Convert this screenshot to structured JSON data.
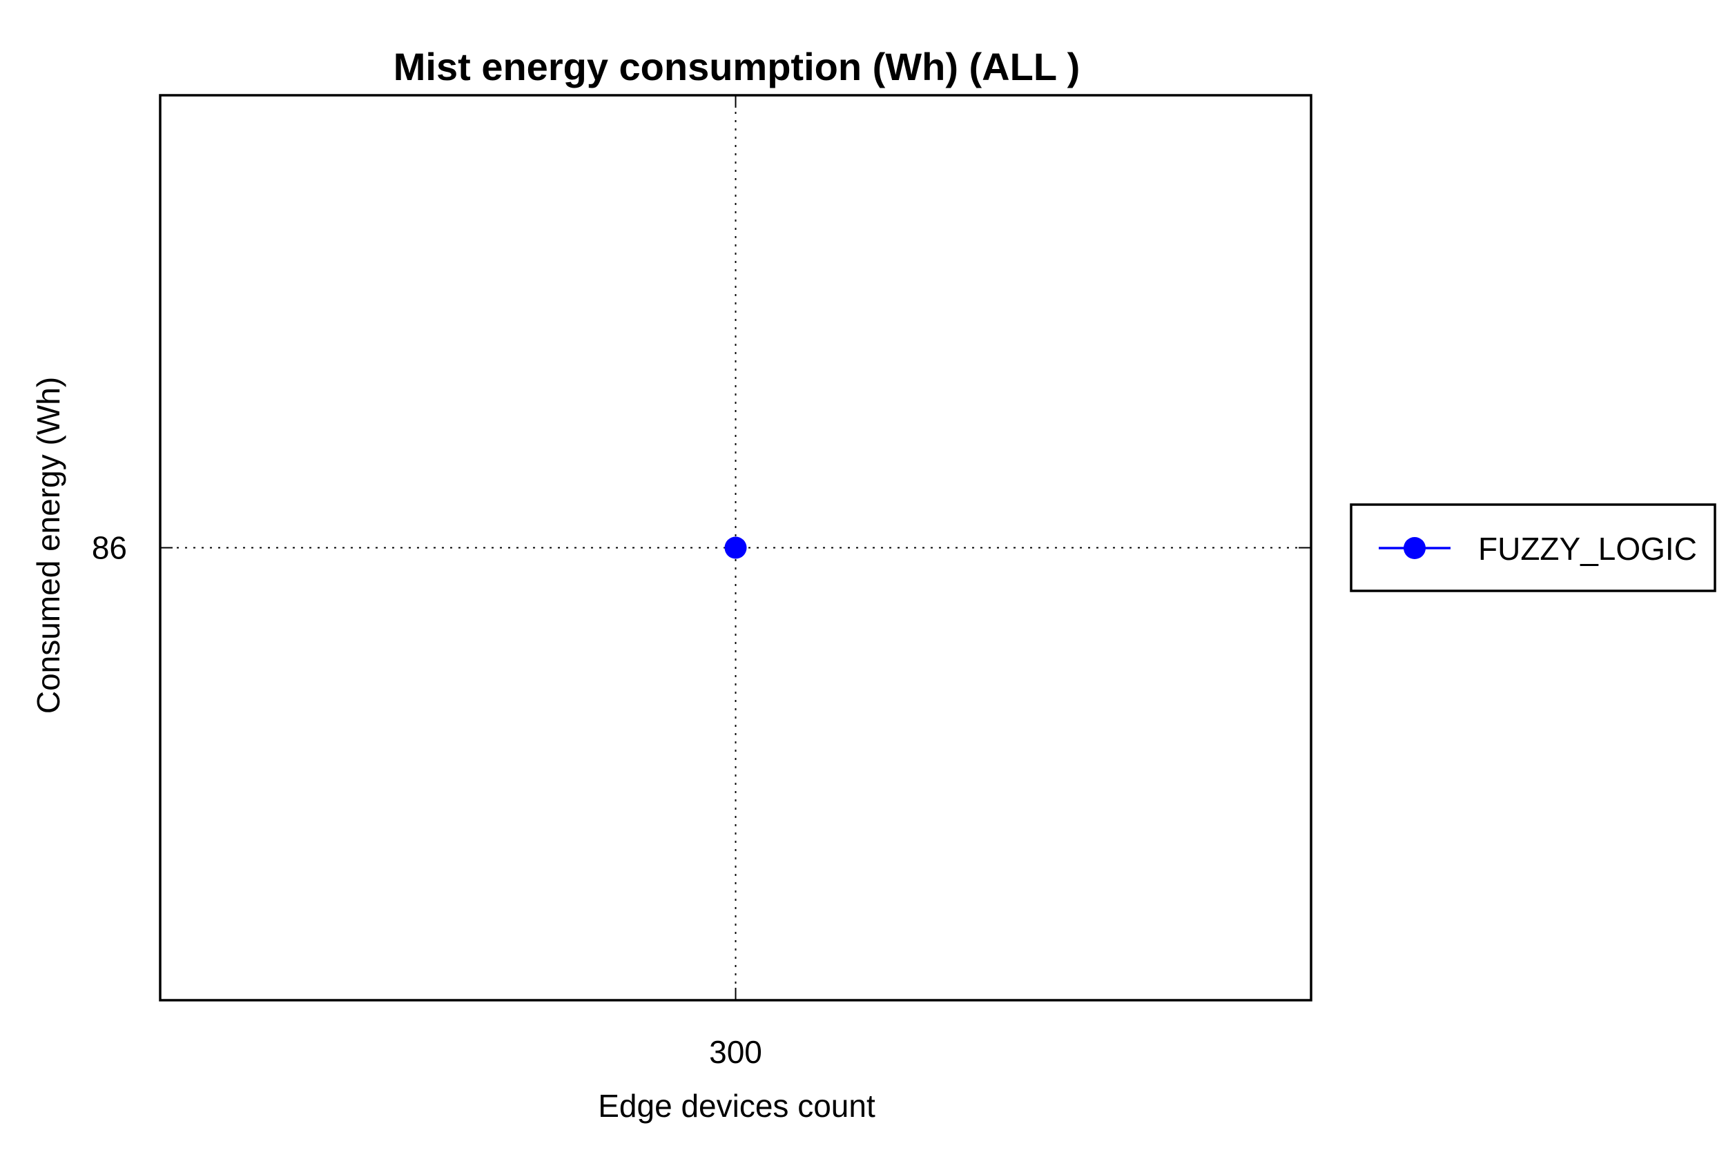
{
  "chart_data": {
    "type": "line",
    "title": "Mist energy consumption (Wh) (ALL )",
    "xlabel": "Edge devices count",
    "ylabel": "Consumed energy (Wh)",
    "x_ticks": [
      "300"
    ],
    "y_ticks": [
      "86"
    ],
    "x": [
      300
    ],
    "series": [
      {
        "name": "FUZZY_LOGIC",
        "values": [
          86
        ],
        "color": "#0000ff",
        "marker": "circle"
      }
    ],
    "grid": true,
    "legend_position": "right"
  }
}
